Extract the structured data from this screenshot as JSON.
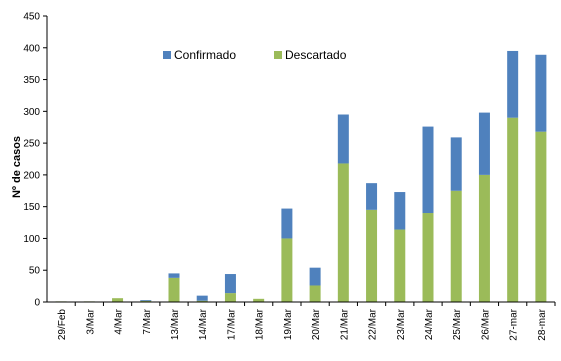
{
  "chart_data": {
    "type": "bar",
    "stacked": true,
    "ylabel": "Nº de casos",
    "xlabel": "",
    "ylim": [
      0,
      450
    ],
    "yticks": [
      0,
      50,
      100,
      150,
      200,
      250,
      300,
      350,
      400,
      450
    ],
    "categories": [
      "29/Feb",
      "3/Mar",
      "4/Mar",
      "7/Mar",
      "13/Mar",
      "14/Mar",
      "17/Mar",
      "18/Mar",
      "19/Mar",
      "20/Mar",
      "21/Mar",
      "22/Mar",
      "23/Mar",
      "24/Mar",
      "25/Mar",
      "26/Mar",
      "27-mar",
      "28-mar"
    ],
    "series": [
      {
        "name": "Descartado",
        "color": "#9bbb59",
        "values": [
          1,
          1,
          6,
          2,
          38,
          2,
          14,
          5,
          100,
          26,
          218,
          145,
          114,
          140,
          175,
          200,
          290,
          268
        ]
      },
      {
        "name": "Confirmado",
        "color": "#4f81bd",
        "values": [
          0,
          0,
          0,
          1,
          7,
          8,
          30,
          0,
          47,
          28,
          77,
          42,
          59,
          136,
          84,
          98,
          105,
          121
        ]
      }
    ],
    "legend": {
      "placement": "top-center",
      "order": [
        "Confirmado",
        "Descartado"
      ]
    },
    "grid": false
  }
}
